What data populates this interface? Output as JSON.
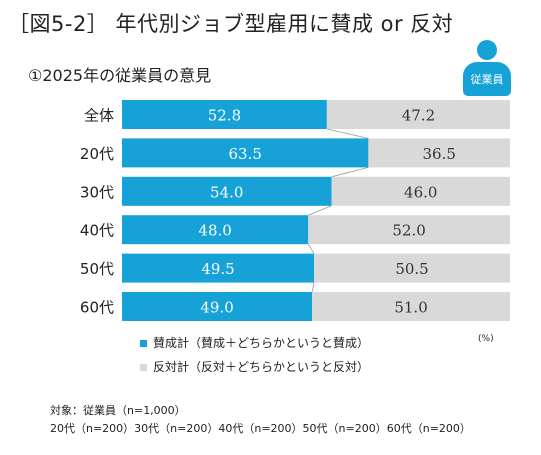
{
  "header": {
    "title": "［図5-2］ 年代別ジョブ型雇用に賛成 or 反対",
    "subtitle": "①2025年の従業員の意見",
    "badge_label": "従業員"
  },
  "chart_data": {
    "type": "bar",
    "orientation": "horizontal",
    "stacked": "100%",
    "categories": [
      "全体",
      "20代",
      "30代",
      "40代",
      "50代",
      "60代"
    ],
    "series": [
      {
        "name": "賛成計（賛成＋どちらかというと賛成）",
        "values": [
          52.8,
          63.5,
          54.0,
          48.0,
          49.5,
          49.0
        ],
        "color": "#16a2d7"
      },
      {
        "name": "反対計（反対＋どちらかというと反対）",
        "values": [
          47.2,
          36.5,
          46.0,
          52.0,
          50.5,
          51.0
        ],
        "color": "#d9d9d9"
      }
    ],
    "xlim": [
      0,
      100
    ],
    "unit": "(%)",
    "connector_lines": true,
    "grid": false,
    "legend_position": "bottom"
  },
  "notes": {
    "line1": "対象：従業員（n=1,000）",
    "line2": "20代（n=200）30代（n=200）40代（n=200）50代（n=200）60代（n=200）"
  }
}
